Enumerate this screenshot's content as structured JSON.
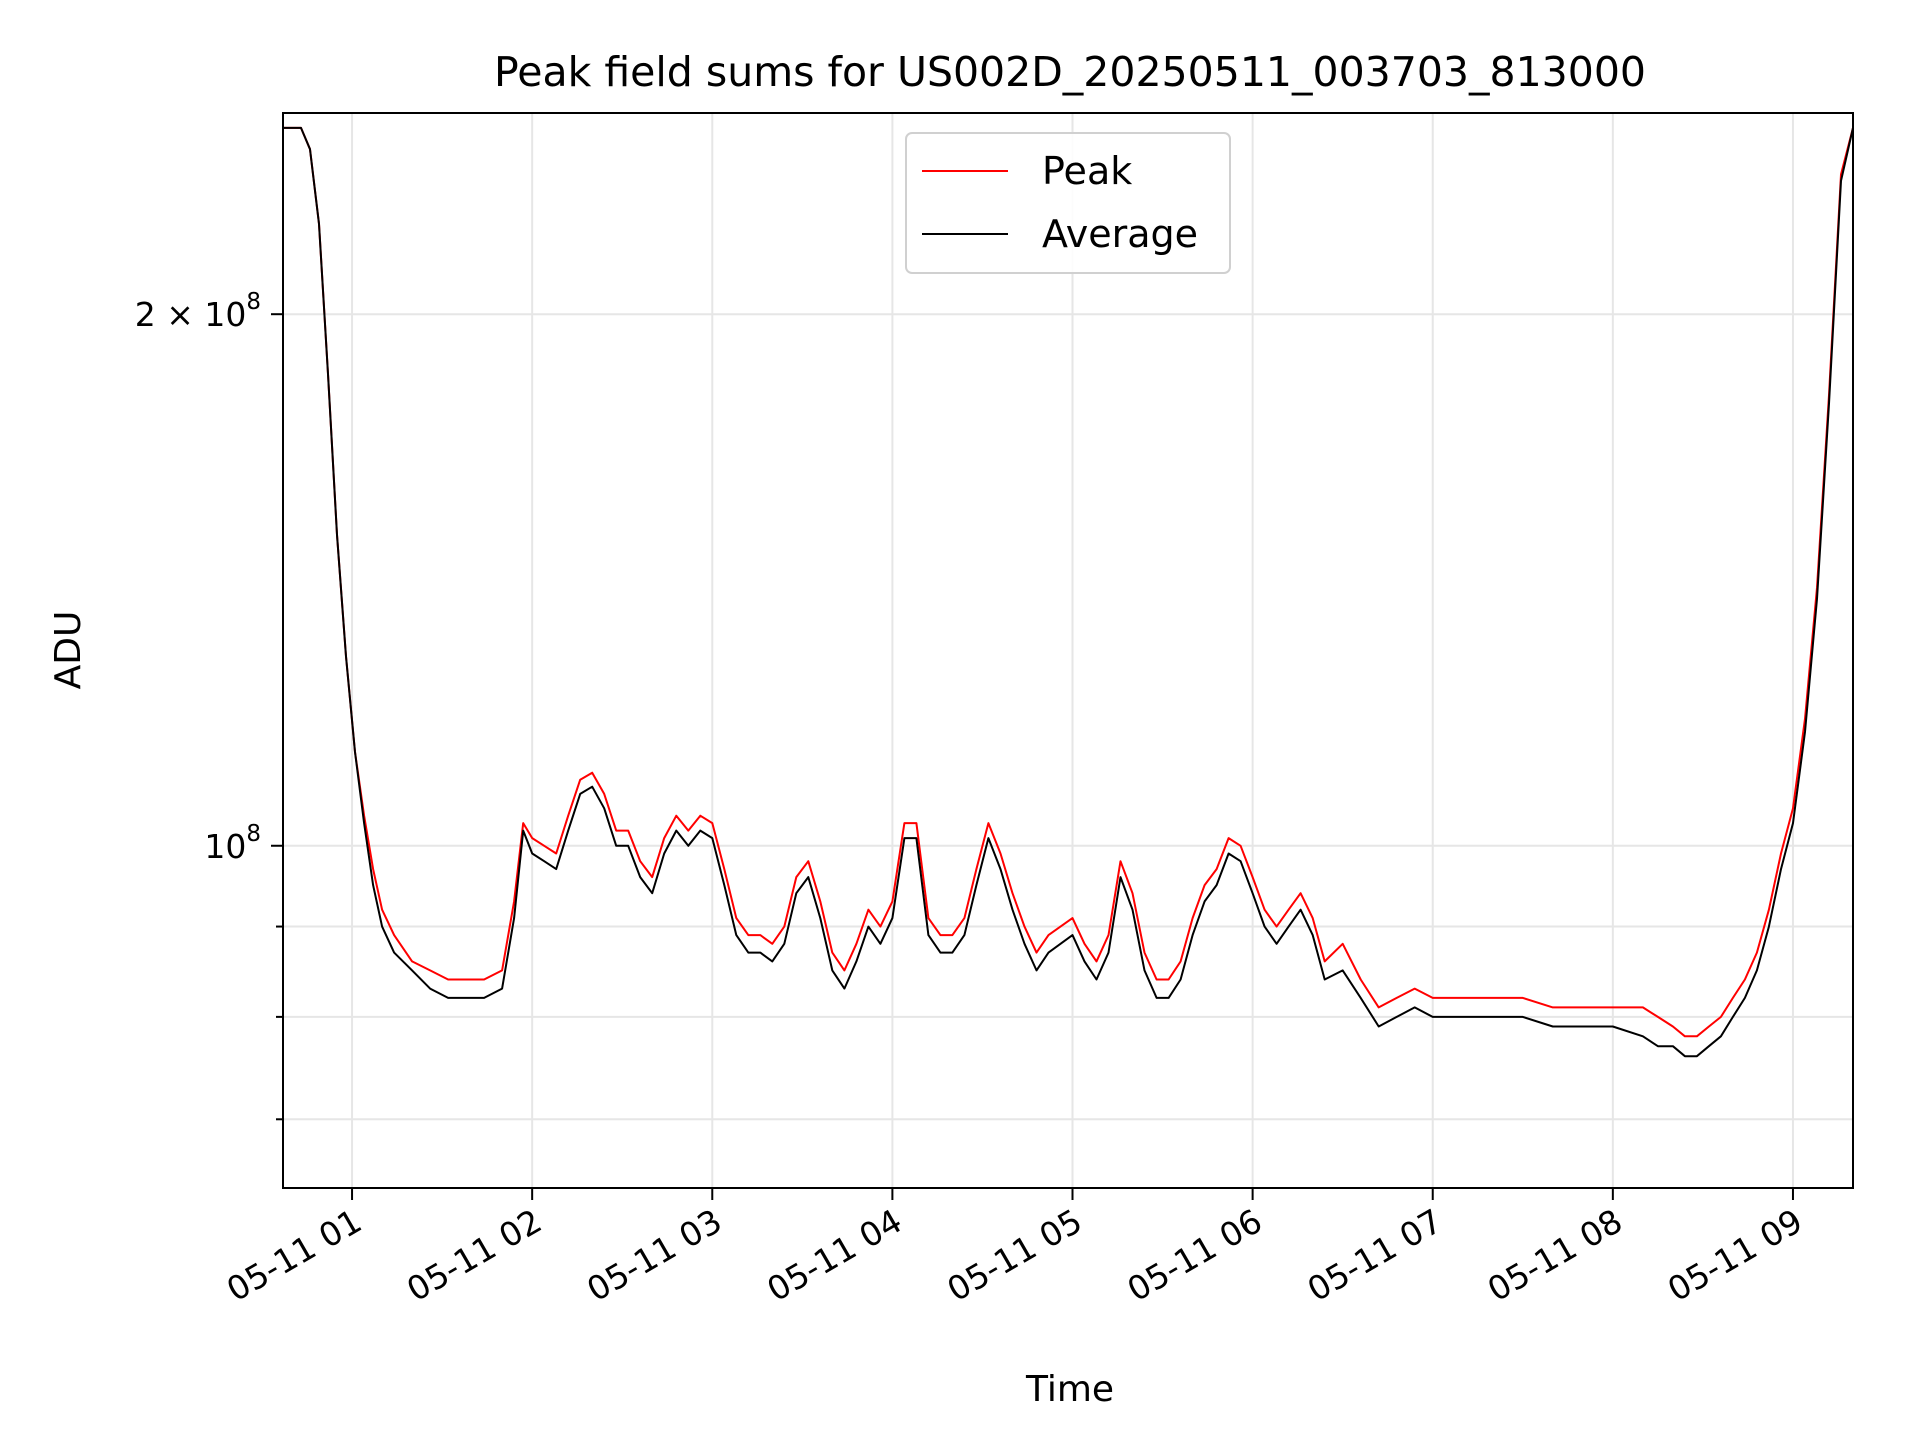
{
  "chart_data": {
    "type": "line",
    "title": "Peak field sums for US002D_20250511_003703_813000",
    "xlabel": "Time",
    "ylabel": "ADU",
    "yscale": "log",
    "grid": true,
    "legend_position": "upper center",
    "xlim": [
      "05-11 00:37",
      "05-11 09:20"
    ],
    "ylim": [
      64000000,
      260000000
    ],
    "x_ticks": [
      "05-11 01",
      "05-11 02",
      "05-11 03",
      "05-11 04",
      "05-11 05",
      "05-11 06",
      "05-11 07",
      "05-11 08",
      "05-11 09"
    ],
    "y_major_ticks": [
      {
        "value": 100000000,
        "mantissa": "",
        "base": "10",
        "exp": "8"
      },
      {
        "value": 200000000,
        "mantissa": "2 × ",
        "base": "10",
        "exp": "8"
      }
    ],
    "y_minor_ticks": [
      70000000,
      80000000,
      90000000,
      300000000
    ],
    "x": [
      "00:37",
      "00:43",
      "00:46",
      "00:49",
      "00:52",
      "00:55",
      "00:58",
      "01:01",
      "01:04",
      "01:07",
      "01:10",
      "01:14",
      "01:20",
      "01:26",
      "01:32",
      "01:38",
      "01:44",
      "01:50",
      "01:54",
      "01:57",
      "02:00",
      "02:04",
      "02:08",
      "02:12",
      "02:16",
      "02:20",
      "02:24",
      "02:28",
      "02:32",
      "02:36",
      "02:40",
      "02:44",
      "02:48",
      "02:52",
      "02:56",
      "03:00",
      "03:04",
      "03:08",
      "03:12",
      "03:16",
      "03:20",
      "03:24",
      "03:28",
      "03:32",
      "03:36",
      "03:40",
      "03:44",
      "03:48",
      "03:52",
      "03:56",
      "04:00",
      "04:04",
      "04:08",
      "04:12",
      "04:16",
      "04:20",
      "04:24",
      "04:28",
      "04:32",
      "04:36",
      "04:40",
      "04:44",
      "04:48",
      "04:52",
      "04:56",
      "05:00",
      "05:04",
      "05:08",
      "05:12",
      "05:16",
      "05:20",
      "05:24",
      "05:28",
      "05:32",
      "05:36",
      "05:40",
      "05:44",
      "05:48",
      "05:52",
      "05:56",
      "06:00",
      "06:04",
      "06:08",
      "06:12",
      "06:16",
      "06:20",
      "06:24",
      "06:30",
      "06:36",
      "06:42",
      "06:48",
      "06:54",
      "07:00",
      "07:10",
      "07:20",
      "07:30",
      "07:40",
      "07:50",
      "08:00",
      "08:10",
      "08:15",
      "08:20",
      "08:24",
      "08:28",
      "08:32",
      "08:36",
      "08:40",
      "08:44",
      "08:48",
      "08:52",
      "08:56",
      "09:00",
      "09:04",
      "09:08",
      "09:12",
      "09:16",
      "09:20"
    ],
    "series": [
      {
        "name": "Peak",
        "color": "#ff0000",
        "values": [
          255,
          255,
          248,
          225,
          185,
          150,
          128,
          113,
          104,
          97,
          92,
          89,
          86,
          85,
          84,
          84,
          84,
          85,
          93,
          103,
          101,
          100,
          99,
          104,
          109,
          110,
          107,
          102,
          102,
          98,
          96,
          101,
          104,
          102,
          104,
          103,
          97,
          91,
          89,
          89,
          88,
          90,
          96,
          98,
          93,
          87,
          85,
          88,
          92,
          90,
          93,
          103,
          103,
          91,
          89,
          89,
          91,
          97,
          103,
          99,
          94,
          90,
          87,
          89,
          90,
          91,
          88,
          86,
          89,
          98,
          94,
          87,
          84,
          84,
          86,
          91,
          95,
          97,
          101,
          100,
          96,
          92,
          90,
          92,
          94,
          91,
          86,
          88,
          84,
          81,
          82,
          83,
          82,
          82,
          82,
          82,
          81,
          81,
          81,
          81,
          80,
          79,
          78,
          78,
          79,
          80,
          82,
          84,
          87,
          92,
          99,
          105,
          118,
          140,
          180,
          240,
          255
        ]
      },
      {
        "name": "Average",
        "color": "#000000",
        "values": [
          255,
          255,
          248,
          225,
          185,
          150,
          128,
          113,
          103,
          95,
          90,
          87,
          85,
          83,
          82,
          82,
          82,
          83,
          91,
          102,
          99,
          98,
          97,
          102,
          107,
          108,
          105,
          100,
          100,
          96,
          94,
          99,
          102,
          100,
          102,
          101,
          95,
          89,
          87,
          87,
          86,
          88,
          94,
          96,
          91,
          85,
          83,
          86,
          90,
          88,
          91,
          101,
          101,
          89,
          87,
          87,
          89,
          95,
          101,
          97,
          92,
          88,
          85,
          87,
          88,
          89,
          86,
          84,
          87,
          96,
          92,
          85,
          82,
          82,
          84,
          89,
          93,
          95,
          99,
          98,
          94,
          90,
          88,
          90,
          92,
          89,
          84,
          85,
          82,
          79,
          80,
          81,
          80,
          80,
          80,
          80,
          79,
          79,
          79,
          78,
          77,
          77,
          76,
          76,
          77,
          78,
          80,
          82,
          85,
          90,
          97,
          103,
          116,
          138,
          178,
          238,
          255
        ]
      }
    ],
    "value_unit_multiplier": 1000000
  }
}
